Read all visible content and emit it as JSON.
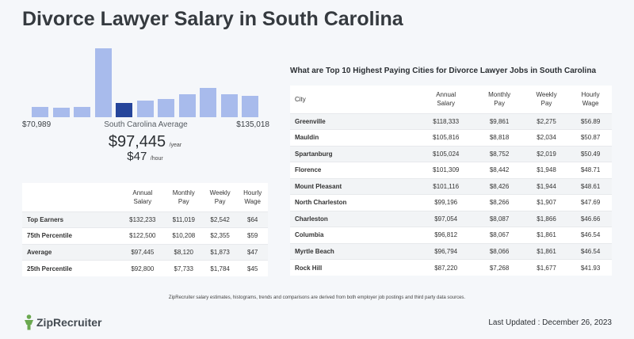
{
  "title": "Divorce Lawyer Salary in South Carolina",
  "histogram": {
    "bars": [
      0.14,
      0.13,
      0.14,
      0.95,
      0.2,
      0.23,
      0.25,
      0.32,
      0.4,
      0.31,
      0.29
    ],
    "highlight_index": 4,
    "low_label": "$70,989",
    "mid_label": "South Carolina Average",
    "high_label": "$135,018"
  },
  "average": {
    "yearly": "$97,445",
    "yearly_unit": "/year",
    "hourly": "$47",
    "hourly_unit": "/hour"
  },
  "percentile_table": {
    "headers": [
      "",
      "Annual Salary",
      "Monthly Pay",
      "Weekly Pay",
      "Hourly Wage"
    ],
    "rows": [
      [
        "Top Earners",
        "$132,233",
        "$11,019",
        "$2,542",
        "$64"
      ],
      [
        "75th Percentile",
        "$122,500",
        "$10,208",
        "$2,355",
        "$59"
      ],
      [
        "Average",
        "$97,445",
        "$8,120",
        "$1,873",
        "$47"
      ],
      [
        "25th Percentile",
        "$92,800",
        "$7,733",
        "$1,784",
        "$45"
      ]
    ]
  },
  "cities": {
    "title": "What are Top 10 Highest Paying Cities for Divorce Lawyer Jobs in South Carolina",
    "headers": [
      "City",
      "Annual Salary",
      "Monthly Pay",
      "Weekly Pay",
      "Hourly Wage"
    ],
    "rows": [
      [
        "Greenville",
        "$118,333",
        "$9,861",
        "$2,275",
        "$56.89"
      ],
      [
        "Mauldin",
        "$105,816",
        "$8,818",
        "$2,034",
        "$50.87"
      ],
      [
        "Spartanburg",
        "$105,024",
        "$8,752",
        "$2,019",
        "$50.49"
      ],
      [
        "Florence",
        "$101,309",
        "$8,442",
        "$1,948",
        "$48.71"
      ],
      [
        "Mount Pleasant",
        "$101,116",
        "$8,426",
        "$1,944",
        "$48.61"
      ],
      [
        "North Charleston",
        "$99,196",
        "$8,266",
        "$1,907",
        "$47.69"
      ],
      [
        "Charleston",
        "$97,054",
        "$8,087",
        "$1,866",
        "$46.66"
      ],
      [
        "Columbia",
        "$96,812",
        "$8,067",
        "$1,861",
        "$46.54"
      ],
      [
        "Myrtle Beach",
        "$96,794",
        "$8,066",
        "$1,861",
        "$46.54"
      ],
      [
        "Rock Hill",
        "$87,220",
        "$7,268",
        "$1,677",
        "$41.93"
      ]
    ]
  },
  "disclaimer": "ZipRecruiter salary estimates, histograms, trends and comparisons are derived from both employer job postings and third party data sources.",
  "footer": {
    "logo_text": "ZipRecruiter",
    "last_updated": "Last Updated : December 26, 2023"
  },
  "colors": {
    "bar": "#a8bbec",
    "bar_highlight": "#26459b",
    "logo_green": "#6aa84f"
  }
}
